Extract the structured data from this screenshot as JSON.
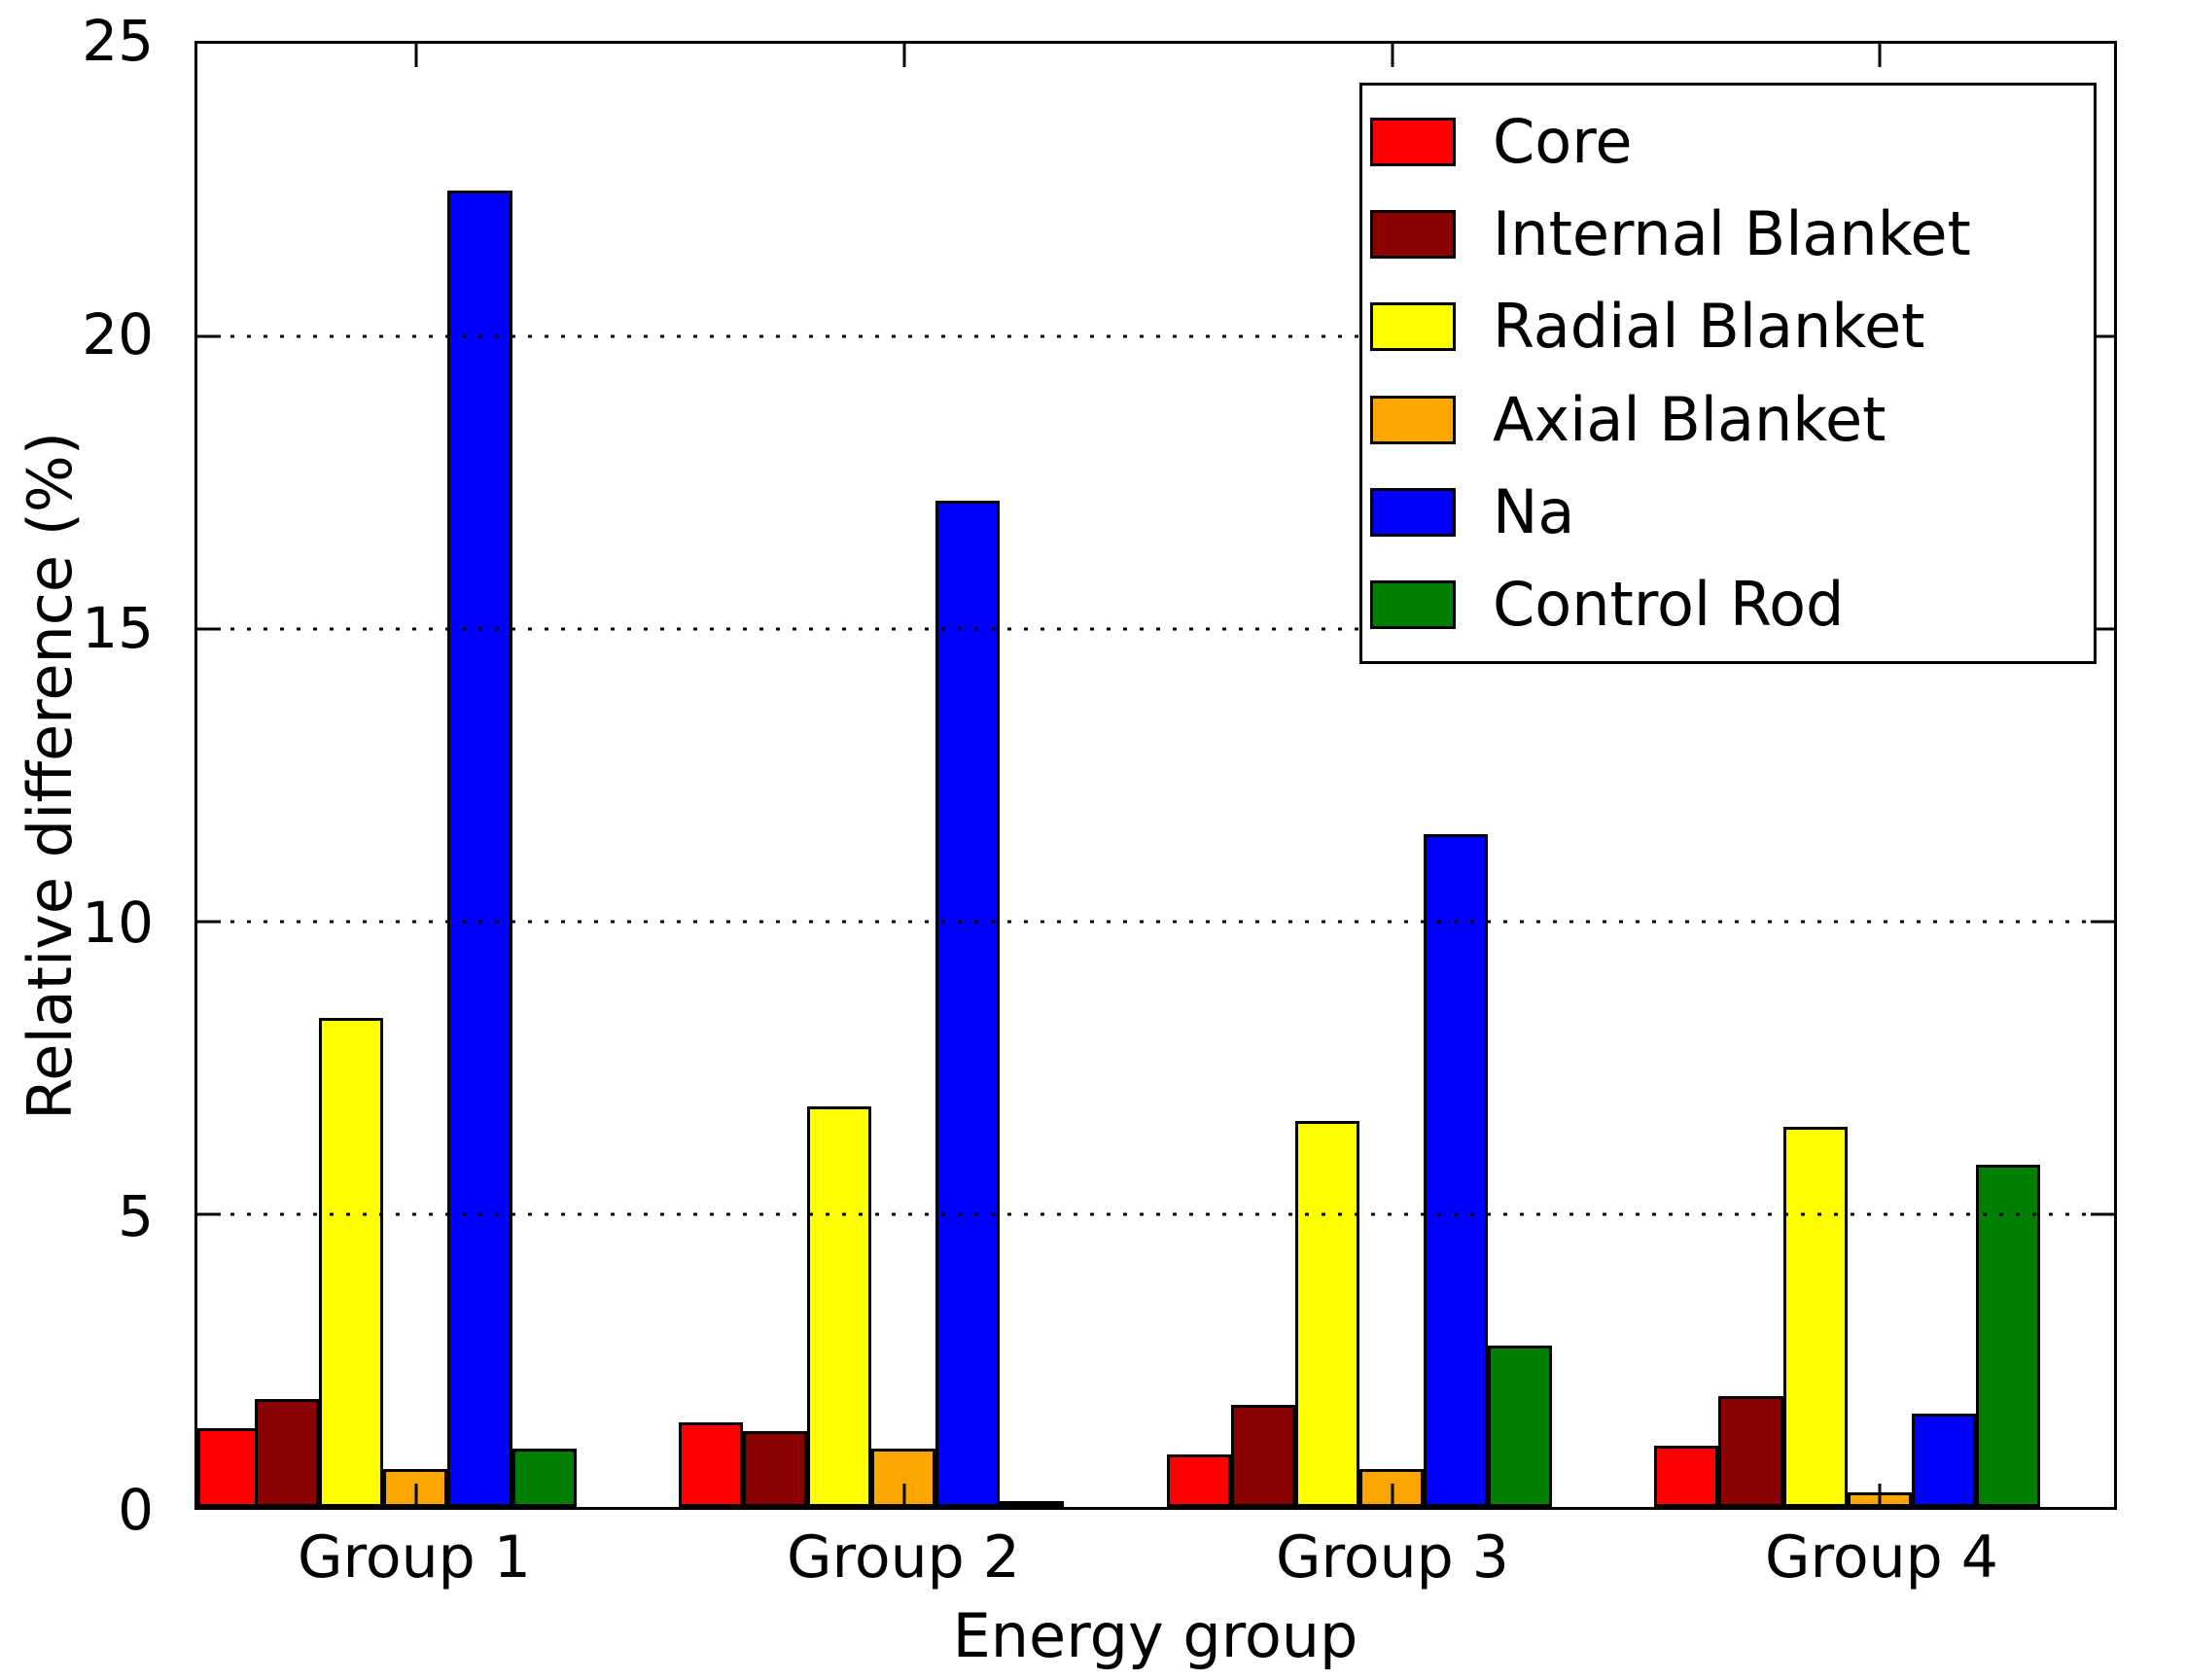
{
  "figure": {
    "xlabel": "Energy group",
    "ylabel": "Relative difference (%)"
  },
  "chart_data": {
    "type": "bar",
    "title": "",
    "xlabel": "Energy group",
    "ylabel": "Relative difference (%)",
    "categories": [
      "Group 1",
      "Group 2",
      "Group 3",
      "Group 4"
    ],
    "series": [
      {
        "name": "Core",
        "color": "#ff0000",
        "values": [
          1.35,
          1.45,
          0.9,
          1.05
        ]
      },
      {
        "name": "Internal Blanket",
        "color": "#8b0000",
        "values": [
          1.85,
          1.3,
          1.75,
          1.9
        ]
      },
      {
        "name": "Radial Blanket",
        "color": "#ffff00",
        "values": [
          8.35,
          6.85,
          6.6,
          6.5
        ]
      },
      {
        "name": "Axial Blanket",
        "color": "#ffa500",
        "values": [
          0.65,
          1.0,
          0.65,
          0.25
        ]
      },
      {
        "name": "Na",
        "color": "#0000ff",
        "values": [
          22.5,
          17.2,
          11.5,
          1.6
        ]
      },
      {
        "name": "Control Rod",
        "color": "#008000",
        "values": [
          1.0,
          0.05,
          2.75,
          5.85
        ]
      }
    ],
    "ylim": [
      0,
      25
    ],
    "yticks": [
      0,
      5,
      10,
      15,
      20,
      25
    ],
    "gridline_values": [
      5,
      10,
      15,
      20
    ],
    "grid": "horizontal dotted, drawn above bars",
    "legend_position": "upper right",
    "legend_entries": [
      "Core",
      "Internal Blanket",
      "Radial Blanket",
      "Axial Blanket",
      "Na",
      "Control Rod"
    ]
  }
}
